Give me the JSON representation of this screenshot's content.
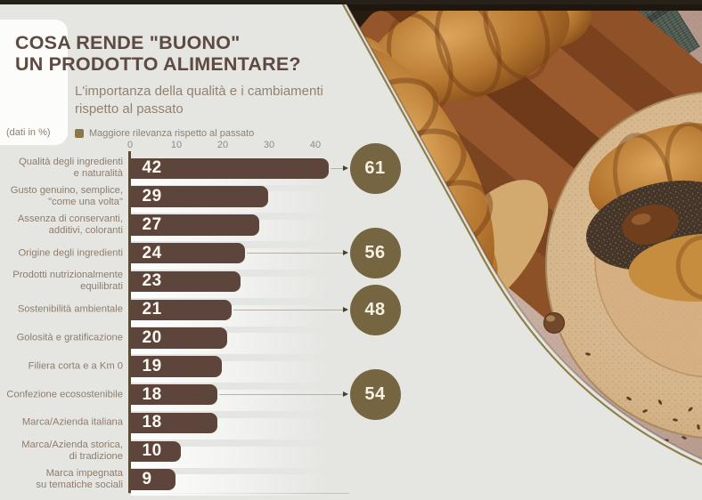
{
  "header": {
    "title_line1": "COSA RENDE \"BUONO\"",
    "title_line2": "UN PRODOTTO ALIMENTARE?",
    "subtitle_line1": "L'importanza della qualità e i cambiamenti",
    "subtitle_line2": "rispetto al passato",
    "data_unit_note": "(dati in %)"
  },
  "legend": {
    "label": "Maggiore rilevanza rispetto al passato",
    "swatch_color": "#8a7848"
  },
  "chart_data": {
    "type": "bar",
    "orientation": "horizontal",
    "title": "COSA RENDE \"BUONO\" UN PRODOTTO ALIMENTARE?",
    "subtitle": "L'importanza della qualità e i cambiamenti rispetto al passato",
    "units": "%",
    "series_label": "Maggiore rilevanza rispetto al passato",
    "categories": [
      "Qualità degli ingredienti e naturalità",
      "Gusto genuino, semplice, \"come una volta\"",
      "Assenza di conservanti, additivi, coloranti",
      "Origine degli ingredienti",
      "Prodotti nutrizionalmente equilibrati",
      "Sostenibilità ambientale",
      "Golosità e gratificazione",
      "Filiera corta e a Km 0",
      "Confezione ecosostenibile",
      "Marca/Azienda italiana",
      "Marca/Azienda storica, di tradizione",
      "Marca impegnata su tematiche sociali"
    ],
    "category_display_lines": [
      [
        "Qualità degli ingredienti",
        "e naturalità"
      ],
      [
        "Gusto genuino, semplice,",
        "\"come una volta\""
      ],
      [
        "Assenza di conservanti,",
        "additivi, coloranti"
      ],
      [
        "Origine degli ingredienti"
      ],
      [
        "Prodotti nutrizionalmente",
        "equilibrati"
      ],
      [
        "Sostenibilità ambientale"
      ],
      [
        "Golosità e gratificazione"
      ],
      [
        "Filiera corta e a Km 0"
      ],
      [
        "Confezione ecosostenibile"
      ],
      [
        "Marca/Azienda italiana"
      ],
      [
        "Marca/Azienda storica,",
        "di tradizione"
      ],
      [
        "Marca impegnata",
        "su tematiche sociali"
      ]
    ],
    "values": [
      42,
      29,
      27,
      24,
      23,
      21,
      20,
      19,
      18,
      18,
      10,
      9
    ],
    "callouts": [
      61,
      null,
      null,
      56,
      null,
      48,
      null,
      null,
      54,
      null,
      null,
      null
    ],
    "axis_ticks": [
      0,
      10,
      20,
      30,
      40
    ],
    "xlim": [
      0,
      45
    ],
    "grid": false,
    "legend_position": "top",
    "bar_color": "#5e453c",
    "callout_circle_color": "#756540"
  },
  "colors": {
    "background": "#e5e6e2",
    "title_text": "#5e4a41",
    "secondary_text": "#8e7c6c",
    "accent_olive": "#8e7e49"
  }
}
